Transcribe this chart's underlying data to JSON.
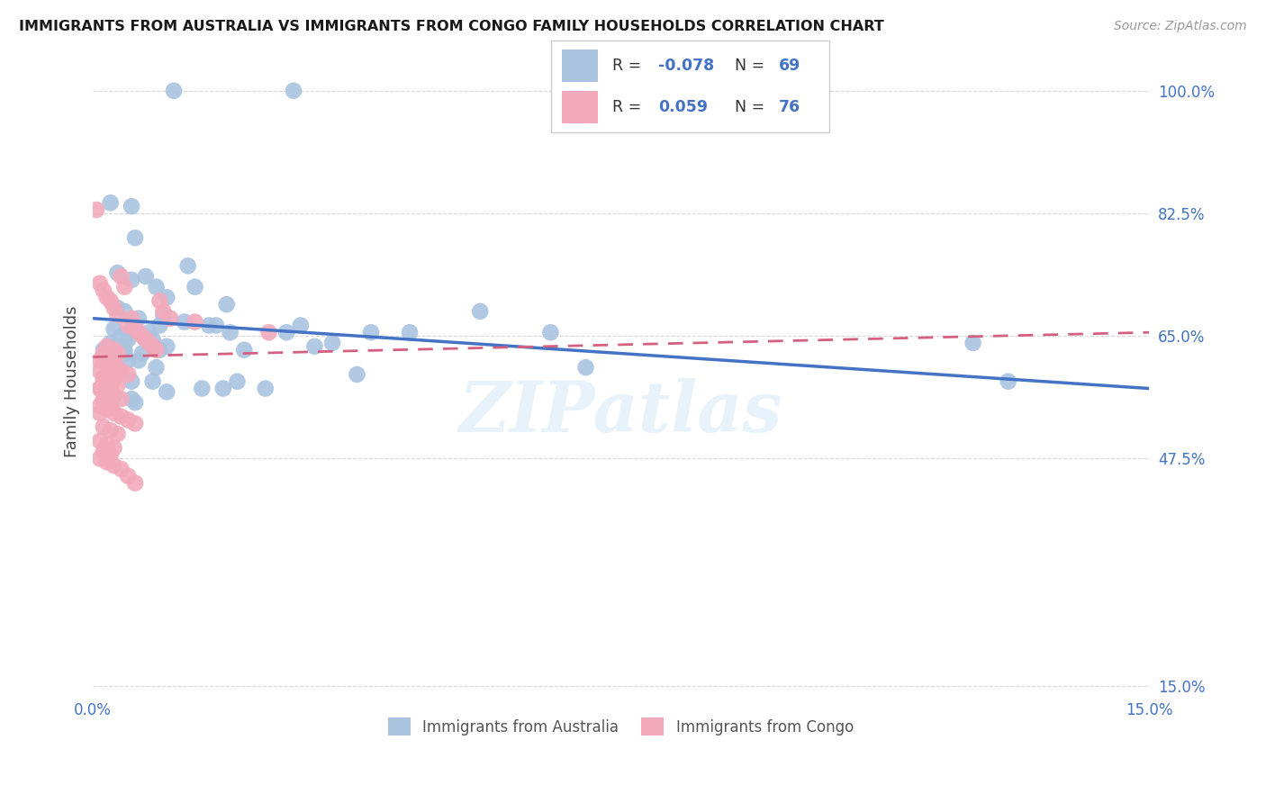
{
  "title": "IMMIGRANTS FROM AUSTRALIA VS IMMIGRANTS FROM CONGO FAMILY HOUSEHOLDS CORRELATION CHART",
  "source": "Source: ZipAtlas.com",
  "ylabel": "Family Households",
  "xlim": [
    0.0,
    15.0
  ],
  "ylim": [
    14.0,
    103.0
  ],
  "legend_r_australia": "-0.078",
  "legend_n_australia": "69",
  "legend_r_congo": "0.059",
  "legend_n_congo": "76",
  "australia_color": "#aac4e0",
  "congo_color": "#f2aabb",
  "trendline_australia_color": "#4472c4",
  "trendline_congo_color": "#d46080",
  "background_color": "#ffffff",
  "watermark": "ZIPatlas",
  "trendline_aus_x0": 0.0,
  "trendline_aus_y0": 67.5,
  "trendline_aus_x1": 15.0,
  "trendline_aus_y1": 57.5,
  "trendline_con_x0": 0.0,
  "trendline_con_y0": 62.0,
  "trendline_con_x1": 15.0,
  "trendline_con_y1": 65.5,
  "aus_x": [
    1.15,
    2.85,
    0.25,
    0.55,
    0.6,
    0.75,
    0.9,
    1.05,
    1.35,
    0.35,
    0.45,
    0.65,
    0.8,
    0.3,
    0.4,
    0.5,
    0.85,
    0.95,
    0.7,
    0.5,
    1.0,
    1.45,
    0.35,
    0.55,
    1.65,
    1.95,
    0.75,
    1.05,
    0.45,
    0.65,
    3.4,
    3.95,
    0.55,
    5.5,
    0.35,
    0.85,
    2.45,
    2.95,
    0.25,
    0.45,
    1.85,
    2.15,
    0.65,
    0.95,
    3.15,
    4.5,
    6.5,
    0.15,
    0.3,
    0.5,
    1.75,
    2.75,
    0.45,
    0.75,
    1.05,
    0.3,
    0.6,
    0.85,
    1.55,
    2.05,
    3.75,
    7.0,
    12.5,
    13.0,
    0.2,
    0.55,
    0.9,
    1.3,
    1.9
  ],
  "aus_y": [
    100.0,
    100.0,
    84.0,
    83.5,
    79.0,
    73.5,
    72.0,
    70.5,
    75.0,
    69.0,
    68.5,
    67.5,
    65.5,
    66.0,
    65.0,
    64.5,
    63.5,
    63.0,
    62.5,
    61.5,
    68.0,
    72.0,
    74.0,
    73.0,
    66.5,
    65.5,
    64.5,
    63.5,
    62.5,
    61.5,
    64.0,
    65.5,
    58.5,
    68.5,
    62.5,
    64.5,
    57.5,
    66.5,
    64.0,
    63.0,
    57.5,
    63.0,
    65.5,
    66.5,
    63.5,
    65.5,
    65.5,
    63.0,
    63.5,
    65.5,
    66.5,
    65.5,
    64.0,
    64.5,
    57.0,
    56.5,
    55.5,
    58.5,
    57.5,
    58.5,
    59.5,
    60.5,
    64.0,
    58.5,
    57.0,
    56.0,
    60.5,
    67.0,
    69.5
  ],
  "con_x": [
    0.05,
    0.1,
    0.15,
    0.2,
    0.25,
    0.3,
    0.35,
    0.4,
    0.45,
    0.5,
    0.55,
    0.6,
    0.65,
    0.7,
    0.75,
    0.8,
    0.85,
    0.9,
    0.95,
    1.0,
    1.1,
    0.15,
    0.25,
    0.35,
    0.1,
    0.2,
    0.3,
    0.15,
    0.25,
    0.1,
    0.2,
    0.3,
    0.4,
    1.45,
    0.15,
    0.25,
    0.35,
    0.1,
    0.2,
    0.3,
    0.15,
    0.25,
    0.1,
    0.2,
    0.3,
    0.4,
    0.5,
    2.5,
    0.15,
    0.25,
    0.35,
    0.1,
    0.2,
    0.3,
    0.15,
    0.25,
    0.1,
    0.2,
    0.3,
    0.4,
    0.5,
    0.6,
    0.15,
    0.25,
    0.35,
    0.1,
    0.2,
    0.3,
    0.15,
    0.25,
    0.1,
    0.2,
    0.3,
    0.4,
    0.5,
    0.6
  ],
  "con_y": [
    83.0,
    72.5,
    71.5,
    70.5,
    70.0,
    69.0,
    68.0,
    73.5,
    72.0,
    66.5,
    67.5,
    66.0,
    65.5,
    65.0,
    64.5,
    64.0,
    63.5,
    63.0,
    70.0,
    68.5,
    67.5,
    61.5,
    61.0,
    60.5,
    60.0,
    59.5,
    59.0,
    58.5,
    58.0,
    57.5,
    57.0,
    56.5,
    56.0,
    67.0,
    55.5,
    55.0,
    62.5,
    54.0,
    63.5,
    63.0,
    62.5,
    62.0,
    61.5,
    61.0,
    60.5,
    60.0,
    59.5,
    65.5,
    59.0,
    58.5,
    58.0,
    57.5,
    57.0,
    56.5,
    56.0,
    55.5,
    55.0,
    54.5,
    54.0,
    53.5,
    53.0,
    52.5,
    52.0,
    51.5,
    51.0,
    50.0,
    49.5,
    49.0,
    48.5,
    48.0,
    47.5,
    47.0,
    46.5,
    46.0,
    45.0,
    44.0
  ]
}
